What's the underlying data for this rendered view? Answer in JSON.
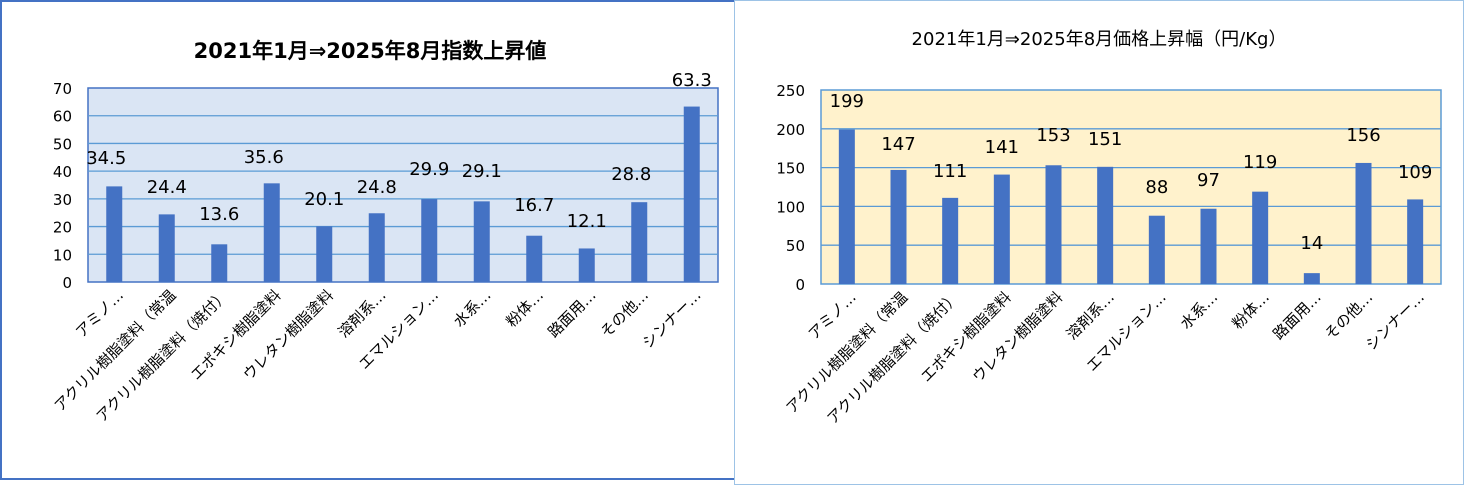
{
  "chart_data": [
    {
      "type": "bar",
      "title": "2021年1月⇒2025年8月指数上昇値",
      "categories": [
        "アミノ…",
        "アクリル樹脂塗料（常温",
        "アクリル樹脂塗料（焼付）",
        "エポキシ樹脂塗料",
        "ウレタン樹脂塗料",
        "溶剤系…",
        "エマルション…",
        "水系…",
        "粉体…",
        "路面用…",
        "その他…",
        "シンナー…"
      ],
      "values": [
        34.5,
        24.4,
        13.6,
        35.6,
        20.1,
        24.8,
        29.9,
        29.1,
        16.7,
        12.1,
        28.8,
        63.3
      ],
      "value_labels": [
        "34.5",
        "24.4",
        "13.6",
        "35.6",
        "20.1",
        "24.8",
        "29.9",
        "29.1",
        "16.7",
        "12.1",
        "28.8",
        "63.3"
      ],
      "ylim": [
        0,
        70
      ],
      "yticks": [
        "0",
        "10",
        "20",
        "30",
        "40",
        "50",
        "60",
        "70"
      ],
      "grid": true,
      "colors": {
        "bar": "#4472C4",
        "plot_bg": "#DAE5F4",
        "grid": "#5B9BD5",
        "border": "#4472C4"
      }
    },
    {
      "type": "bar",
      "title": "2021年1月⇒2025年8月価格上昇幅（円/Kg）",
      "categories": [
        "アミノ…",
        "アクリル樹脂塗料（常温",
        "アクリル樹脂塗料（焼付）",
        "エポキシ樹脂塗料",
        "ウレタン樹脂塗料",
        "溶剤系…",
        "エマルション…",
        "水系…",
        "粉体…",
        "路面用…",
        "その他…",
        "シンナー…"
      ],
      "values": [
        199,
        147,
        111,
        141,
        153,
        151,
        88,
        97,
        119,
        14,
        156,
        109
      ],
      "value_labels": [
        "199",
        "147",
        "111",
        "141",
        "153",
        "151",
        "88",
        "97",
        "119",
        "14",
        "156",
        "109"
      ],
      "ylim": [
        0,
        250
      ],
      "yticks": [
        "0",
        "50",
        "100",
        "150",
        "200",
        "250"
      ],
      "grid": true,
      "colors": {
        "bar": "#4472C4",
        "plot_bg": "#FFF2CC",
        "grid": "#5B9BD5",
        "border": "#5B9BD5"
      }
    }
  ]
}
